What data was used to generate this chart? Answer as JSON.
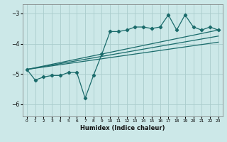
{
  "xlabel": "Humidex (Indice chaleur)",
  "ylabel": "",
  "bg_color": "#cce8e8",
  "grid_color": "#aacccc",
  "line_color": "#1a6b6b",
  "xlim": [
    -0.5,
    23.5
  ],
  "ylim": [
    -6.4,
    -2.7
  ],
  "yticks": [
    -6,
    -5,
    -4,
    -3
  ],
  "xticks": [
    0,
    1,
    2,
    3,
    4,
    5,
    6,
    7,
    8,
    9,
    10,
    11,
    12,
    13,
    14,
    15,
    16,
    17,
    18,
    19,
    20,
    21,
    22,
    23
  ],
  "scatter_x": [
    0,
    1,
    2,
    3,
    4,
    5,
    6,
    7,
    8,
    9,
    10,
    11,
    12,
    13,
    14,
    15,
    16,
    17,
    18,
    19,
    20,
    21,
    22,
    23
  ],
  "scatter_y": [
    -4.85,
    -5.2,
    -5.1,
    -5.05,
    -5.05,
    -4.95,
    -4.95,
    -5.8,
    -5.05,
    -4.35,
    -3.6,
    -3.6,
    -3.55,
    -3.45,
    -3.45,
    -3.5,
    -3.45,
    -3.05,
    -3.55,
    -3.05,
    -3.45,
    -3.55,
    -3.45,
    -3.55
  ],
  "line1_x": [
    0,
    23
  ],
  "line1_y": [
    -4.85,
    -3.55
  ],
  "line2_x": [
    0,
    23
  ],
  "line2_y": [
    -4.85,
    -3.75
  ],
  "line3_x": [
    0,
    23
  ],
  "line3_y": [
    -4.85,
    -3.95
  ]
}
